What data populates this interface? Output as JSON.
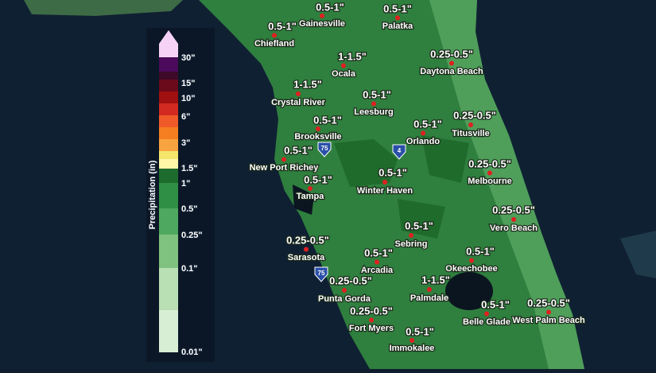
{
  "legend": {
    "title": "Precipitation (in)",
    "labels": [
      "30\"",
      "15\"",
      "10\"",
      "6\"",
      "3\"",
      "1.5\"",
      "1\"",
      "0.5\"",
      "0.25\"",
      "0.1\"",
      "0.01\""
    ]
  },
  "cities": [
    {
      "name": "Gainesville",
      "amount": "0.5-1\""
    },
    {
      "name": "Palatka",
      "amount": "0.5-1\""
    },
    {
      "name": "Chiefland",
      "amount": "0.5-1\""
    },
    {
      "name": "Ocala",
      "amount": "1-1.5\""
    },
    {
      "name": "Daytona Beach",
      "amount": "0.25-0.5\""
    },
    {
      "name": "Crystal River",
      "amount": "1-1.5\""
    },
    {
      "name": "Leesburg",
      "amount": "0.5-1\""
    },
    {
      "name": "Brooksville",
      "amount": "0.5-1\""
    },
    {
      "name": "Orlando",
      "amount": "0.5-1\""
    },
    {
      "name": "Titusville",
      "amount": "0.25-0.5\""
    },
    {
      "name": "New Port Richey",
      "amount": "0.5-1\""
    },
    {
      "name": "Melbourne",
      "amount": "0.25-0.5\""
    },
    {
      "name": "Tampa",
      "amount": "0.5-1\""
    },
    {
      "name": "Winter Haven",
      "amount": "0.5-1\""
    },
    {
      "name": "Vero Beach",
      "amount": "0.25-0.5\""
    },
    {
      "name": "Sebring",
      "amount": "0.5-1\""
    },
    {
      "name": "Sarasota",
      "amount": "0.25-0.5\""
    },
    {
      "name": "Okeechobee",
      "amount": "0.5-1\""
    },
    {
      "name": "Arcadia",
      "amount": "0.5-1\""
    },
    {
      "name": "Punta Gorda",
      "amount": "0.25-0.5\""
    },
    {
      "name": "Palmdale",
      "amount": "1-1.5\""
    },
    {
      "name": "Belle Glade",
      "amount": "0.5-1\""
    },
    {
      "name": "West Palm Beach",
      "amount": "0.25-0.5\""
    },
    {
      "name": "Fort Myers",
      "amount": "0.25-0.5\""
    },
    {
      "name": "Immokalee",
      "amount": "0.5-1\""
    }
  ],
  "shields": [
    "75",
    "4",
    "75"
  ]
}
